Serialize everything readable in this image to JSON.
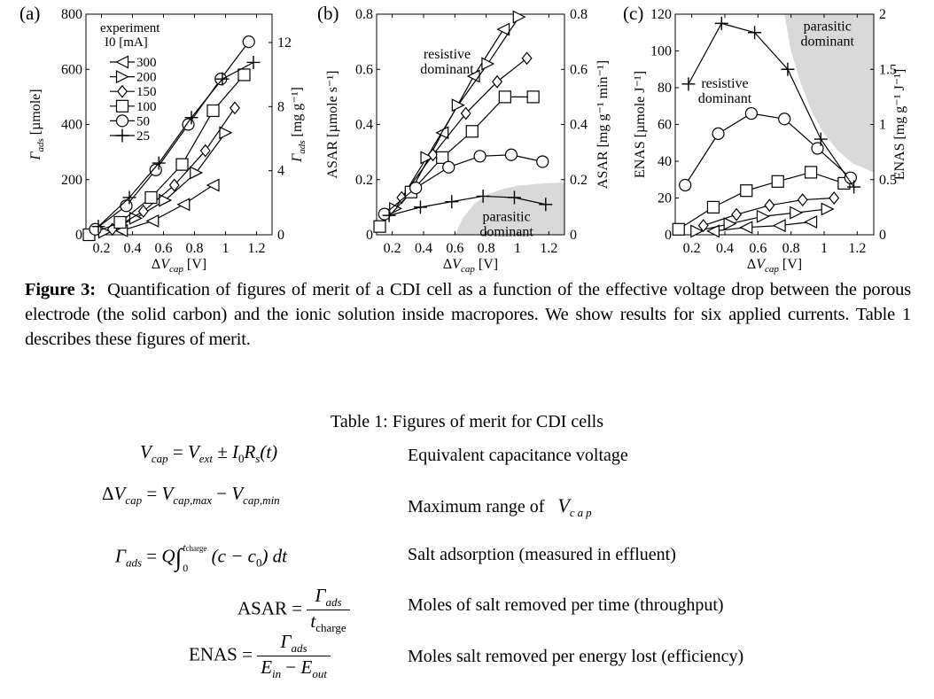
{
  "figure": {
    "caption_label": "Figure 3:",
    "caption_text": "Quantification of figures of merit of a CDI cell as a function of the effective voltage drop between the porous electrode (the solid carbon) and the ionic solution inside macropores.  We show results for six applied currents.  Table 1 describes these figures of merit."
  },
  "chart_data": [
    {
      "type": "line",
      "panel": "(a)",
      "xlabel": "ΔV_cap [V]",
      "ylabel": "Γ_ads [µmole]",
      "ylabel_right": "Γ_ads [mg g⁻¹]",
      "xlim": [
        0.1,
        1.3
      ],
      "ylim": [
        0,
        800
      ],
      "xticks": [
        0.2,
        0.4,
        0.6,
        0.8,
        1,
        1.2
      ],
      "yticks": [
        0,
        200,
        400,
        600,
        800
      ],
      "yticks_right": [
        0,
        4,
        8,
        12
      ],
      "yright_max": 13.77,
      "legend": {
        "title": "experiment",
        "subtitle": "I0 [mA]",
        "placement": "top-left"
      },
      "annotations": [],
      "series": [
        {
          "name": "300",
          "marker": "triangle-left",
          "x": [
            0.33,
            0.53,
            0.73,
            0.92
          ],
          "y": [
            15,
            50,
            110,
            180
          ]
        },
        {
          "name": "200",
          "marker": "triangle-right",
          "x": [
            0.22,
            0.42,
            0.61,
            0.81,
            1.0
          ],
          "y": [
            10,
            60,
            125,
            225,
            370
          ]
        },
        {
          "name": "150",
          "marker": "diamond",
          "x": [
            0.27,
            0.47,
            0.67,
            0.87,
            1.06
          ],
          "y": [
            20,
            85,
            180,
            305,
            460
          ]
        },
        {
          "name": "100",
          "marker": "square",
          "x": [
            0.12,
            0.32,
            0.52,
            0.72,
            0.92,
            1.12
          ],
          "y": [
            0,
            45,
            135,
            255,
            450,
            580
          ]
        },
        {
          "name": "50",
          "marker": "circle",
          "x": [
            0.16,
            0.36,
            0.55,
            0.76,
            0.97,
            1.15
          ],
          "y": [
            20,
            105,
            235,
            400,
            565,
            700
          ]
        },
        {
          "name": "25",
          "marker": "plus",
          "x": [
            0.18,
            0.38,
            0.57,
            0.78,
            0.98,
            1.18
          ],
          "y": [
            30,
            135,
            260,
            425,
            565,
            625
          ]
        }
      ]
    },
    {
      "type": "line",
      "panel": "(b)",
      "xlabel": "ΔV_cap [V]",
      "ylabel": "ASAR [µmole s⁻¹]",
      "ylabel_right": "ASAR [mg g⁻¹ min⁻¹]",
      "xlim": [
        0.1,
        1.3
      ],
      "ylim": [
        0,
        0.8
      ],
      "xticks": [
        0.2,
        0.4,
        0.6,
        0.8,
        1,
        1.2
      ],
      "yticks": [
        0,
        0.2,
        0.4,
        0.6,
        0.8
      ],
      "yticks_right": [
        0,
        0.2,
        0.4,
        0.6,
        0.8
      ],
      "yright_max": 0.8,
      "annotations": [
        {
          "text": [
            "resistive",
            "dominant"
          ],
          "at": [
            0.55,
            0.64
          ]
        },
        {
          "text": [
            "parasitic",
            "dominant"
          ],
          "at": [
            0.93,
            0.05
          ]
        }
      ],
      "shaded_region": {
        "label": "parasitic dominant",
        "color": "#d9d9d9",
        "boundary_x": [
          0.6,
          0.65,
          0.72,
          0.8,
          0.9,
          1.0,
          1.15,
          1.3
        ],
        "boundary_y": [
          0,
          0.06,
          0.11,
          0.145,
          0.165,
          0.178,
          0.186,
          0.19
        ],
        "side": "below-right"
      },
      "series": [
        {
          "name": "300",
          "marker": "triangle-left",
          "x": [
            0.32,
            0.52,
            0.72,
            0.91
          ],
          "y": [
            0.16,
            0.37,
            0.575,
            0.745
          ]
        },
        {
          "name": "200",
          "marker": "triangle-right",
          "x": [
            0.22,
            0.42,
            0.62,
            0.81,
            1.01
          ],
          "y": [
            0.095,
            0.28,
            0.47,
            0.62,
            0.79
          ]
        },
        {
          "name": "150",
          "marker": "diamond",
          "x": [
            0.26,
            0.46,
            0.67,
            0.87,
            1.06
          ],
          "y": [
            0.135,
            0.29,
            0.44,
            0.555,
            0.64
          ]
        },
        {
          "name": "100",
          "marker": "square",
          "x": [
            0.12,
            0.32,
            0.52,
            0.71,
            0.92,
            1.1
          ],
          "y": [
            0.03,
            0.155,
            0.28,
            0.375,
            0.5,
            0.5
          ]
        },
        {
          "name": "50",
          "marker": "circle",
          "x": [
            0.15,
            0.35,
            0.56,
            0.76,
            0.96,
            1.16
          ],
          "y": [
            0.075,
            0.17,
            0.245,
            0.285,
            0.29,
            0.265
          ]
        },
        {
          "name": "25",
          "marker": "plus",
          "x": [
            0.18,
            0.38,
            0.58,
            0.78,
            0.98,
            1.18
          ],
          "y": [
            0.07,
            0.1,
            0.12,
            0.14,
            0.135,
            0.11
          ]
        }
      ]
    },
    {
      "type": "line",
      "panel": "(c)",
      "xlabel": "ΔV_cap [V]",
      "ylabel": "ENAS [µmole J⁻¹]",
      "ylabel_right": "ENAS [mg g⁻¹ J⁻¹]",
      "xlim": [
        0.1,
        1.3
      ],
      "ylim": [
        0,
        120
      ],
      "xticks": [
        0.2,
        0.4,
        0.6,
        0.8,
        1,
        1.2
      ],
      "yticks": [
        0,
        20,
        40,
        60,
        80,
        100,
        120
      ],
      "yticks_right": [
        0,
        0.5,
        1,
        1.5,
        2
      ],
      "yright_max": 2,
      "annotations": [
        {
          "text": [
            "parasitic",
            "dominant"
          ],
          "at": [
            1.02,
            111
          ]
        },
        {
          "text": [
            "resistive",
            "dominant"
          ],
          "at": [
            0.4,
            80
          ]
        }
      ],
      "shaded_region": {
        "label": "parasitic dominant",
        "color": "#d9d9d9",
        "boundary_x": [
          0.76,
          0.8,
          0.86,
          0.93,
          1.0,
          1.08,
          1.17,
          1.3
        ],
        "boundary_y": [
          120,
          100,
          82,
          66,
          55,
          46,
          39,
          34
        ],
        "side": "above-right"
      },
      "series": [
        {
          "name": "300",
          "marker": "triangle-left",
          "x": [
            0.33,
            0.53,
            0.73,
            0.92
          ],
          "y": [
            2,
            4,
            5,
            7
          ]
        },
        {
          "name": "200",
          "marker": "triangle-right",
          "x": [
            0.23,
            0.43,
            0.63,
            0.83,
            1.02
          ],
          "y": [
            2,
            6,
            10,
            12,
            14
          ]
        },
        {
          "name": "150",
          "marker": "diamond",
          "x": [
            0.27,
            0.47,
            0.67,
            0.87,
            1.06
          ],
          "y": [
            5,
            11,
            16,
            19,
            20
          ]
        },
        {
          "name": "100",
          "marker": "square",
          "x": [
            0.12,
            0.33,
            0.53,
            0.72,
            0.92,
            1.12
          ],
          "y": [
            3,
            15,
            24,
            29,
            34,
            28
          ]
        },
        {
          "name": "50",
          "marker": "circle",
          "x": [
            0.16,
            0.36,
            0.56,
            0.76,
            0.96,
            1.16
          ],
          "y": [
            27,
            55,
            66,
            63,
            47,
            31
          ]
        },
        {
          "name": "25",
          "marker": "plus",
          "x": [
            0.18,
            0.38,
            0.58,
            0.78,
            0.98,
            1.18
          ],
          "y": [
            82,
            115,
            110,
            90,
            52,
            26
          ]
        }
      ]
    }
  ],
  "table": {
    "title": "Table 1:  Figures of merit for CDI cells",
    "rows": [
      {
        "eq": {
          "lhs": "V",
          "lhs_sub": "cap",
          "eqs": " = ",
          "a": "V",
          "a_sub": "ext",
          "op": " ± ",
          "b": "I",
          "b_sub": "0",
          "c": "R",
          "c_sub": "s",
          "d": "(t)"
        },
        "desc": "Equivalent capacitance voltage"
      },
      {
        "eq": {
          "delta": "Δ",
          "lhs": "V",
          "lhs_sub": "cap",
          "eqs": " = ",
          "a": "V",
          "a_sub": "cap,max",
          "op": " − ",
          "b": "V",
          "b_sub": "cap,min"
        },
        "desc": "Maximum range of",
        "desc_sym": "V",
        "desc_sub": "cap"
      },
      {
        "eq": {
          "lhs": "Γ",
          "lhs_sub": "ads",
          "eqs": " = ",
          "a": "Q",
          "int": "∫",
          "upper": "t",
          "upper_sub": "charge",
          "lower": "0",
          "body": " (c − c",
          "body_sub": "0",
          "tail": ") dt"
        },
        "desc": "Salt adsorption (measured in effluent)"
      },
      {
        "eq": {
          "lhs": "ASAR",
          "eqs": " = ",
          "num": "Γ",
          "num_sub": "ads",
          "den": "t",
          "den_sub": "charge"
        },
        "desc": "Moles of salt removed per time (throughput)"
      },
      {
        "eq": {
          "lhs": "ENAS",
          "eqs": " = ",
          "num": "Γ",
          "num_sub": "ads",
          "den_a": "E",
          "den_a_sub": "in",
          "den_op": " − ",
          "den_b": "E",
          "den_b_sub": "out"
        },
        "desc": "Moles salt removed per energy lost (efficiency)"
      }
    ]
  },
  "colors": {
    "shade": "#d9d9d9",
    "ink": "#000000"
  }
}
